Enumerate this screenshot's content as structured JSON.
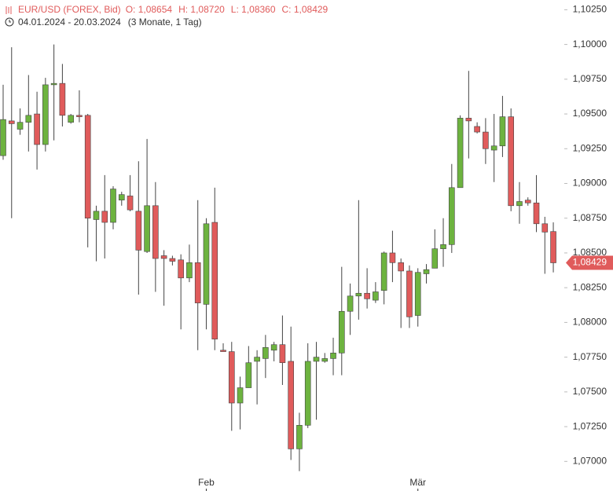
{
  "chart_data": {
    "type": "candlestick",
    "title": "EUR/USD (FOREX, Bid)",
    "ohlc_labels": [
      "O: 1,08654",
      "H: 1,08720",
      "L: 1,08360",
      "C: 1,08429"
    ],
    "date_range": "04.01.2024 - 20.03.2024",
    "period": "(3 Monate, 1 Tag)",
    "categories": [
      null,
      null,
      null,
      null,
      null,
      null,
      null,
      null,
      null,
      null,
      null,
      null,
      null,
      null,
      null,
      null,
      null,
      null,
      null,
      null,
      null,
      null,
      null,
      null,
      "Feb",
      null,
      null,
      null,
      null,
      null,
      null,
      null,
      null,
      null,
      null,
      null,
      null,
      null,
      null,
      null,
      null,
      null,
      null,
      null,
      null,
      null,
      null,
      null,
      null,
      "Mär",
      null,
      null,
      null,
      null,
      null,
      null,
      null,
      null,
      null,
      null,
      null,
      null,
      null,
      null,
      null,
      null
    ],
    "up_color": "#6db33f",
    "down_color": "#e05b5b",
    "open": [
      1.092,
      1.0945,
      1.0939,
      1.0944,
      1.095,
      1.0928,
      1.0971,
      1.0972,
      1.0944,
      1.0949,
      1.0949,
      1.0874,
      1.088,
      1.0872,
      1.0888,
      1.0891,
      1.088,
      1.0851,
      1.0884,
      1.0848,
      1.0846,
      1.0845,
      1.0832,
      1.0843,
      1.0813,
      1.0872,
      1.078,
      1.0779,
      1.0742,
      1.0753,
      1.0772,
      1.0774,
      1.078,
      1.0784,
      1.0772,
      1.0709,
      1.0726,
      1.0772,
      1.0772,
      1.0774,
      1.0778,
      1.0808,
      1.0819,
      1.0821,
      1.0816,
      1.0823,
      1.085,
      1.0843,
      1.0837,
      1.0805,
      1.0835,
      1.0839,
      1.0853,
      1.0856,
      1.0897,
      1.0947,
      1.0941,
      1.0937,
      1.0924,
      1.0927,
      1.0948,
      1.0884,
      1.0888,
      1.0886,
      1.0871,
      1.08654
    ],
    "high": [
      1.0971,
      1.0998,
      1.0954,
      1.0978,
      1.0966,
      1.0976,
      1.1,
      1.0986,
      1.095,
      1.0967,
      1.095,
      1.0884,
      1.0906,
      1.0898,
      1.0894,
      1.0906,
      1.0916,
      1.0932,
      1.0901,
      1.0852,
      1.0848,
      1.0849,
      1.0856,
      1.0888,
      1.0875,
      1.0897,
      1.0785,
      1.0786,
      1.0761,
      1.0783,
      1.078,
      1.0791,
      1.0786,
      1.0805,
      1.0797,
      1.0735,
      1.0785,
      1.0786,
      1.0778,
      1.0789,
      1.084,
      1.0828,
      1.0888,
      1.0839,
      1.0829,
      1.0851,
      1.0866,
      1.0846,
      1.0841,
      1.0839,
      1.0842,
      1.0867,
      1.0875,
      1.0914,
      1.0949,
      1.0981,
      1.0944,
      1.0947,
      1.095,
      1.0963,
      1.0954,
      1.0901,
      1.089,
      1.0906,
      1.0876,
      1.0872
    ],
    "low": [
      1.0917,
      1.0875,
      1.0935,
      1.0923,
      1.091,
      1.0923,
      1.0931,
      1.0941,
      1.0943,
      1.0944,
      1.0854,
      1.0844,
      1.0846,
      1.0867,
      1.0884,
      1.088,
      1.082,
      1.085,
      1.0822,
      1.0812,
      1.0841,
      1.0795,
      1.0829,
      1.078,
      1.0795,
      1.078,
      1.0779,
      1.0722,
      1.0723,
      1.0753,
      1.0741,
      1.076,
      1.0772,
      1.0755,
      1.0701,
      1.0693,
      1.0724,
      1.073,
      1.0771,
      1.0762,
      1.0762,
      1.0791,
      1.0802,
      1.081,
      1.0814,
      1.0813,
      1.0829,
      1.0796,
      1.0796,
      1.0797,
      1.0828,
      1.0839,
      1.084,
      1.085,
      1.0897,
      1.0918,
      1.0936,
      1.0914,
      1.0901,
      1.0919,
      1.088,
      1.0871,
      1.0884,
      1.0865,
      1.0835,
      1.0836
    ],
    "close": [
      1.0946,
      1.0943,
      1.0944,
      1.0949,
      1.0928,
      1.0971,
      1.0972,
      1.0949,
      1.0949,
      1.0948,
      1.0875,
      1.088,
      1.0872,
      1.0896,
      1.0892,
      1.0881,
      1.0852,
      1.0884,
      1.0846,
      1.0846,
      1.0844,
      1.0832,
      1.0843,
      1.0814,
      1.0871,
      1.0788,
      1.0779,
      1.0742,
      1.0753,
      1.0771,
      1.0775,
      1.0782,
      1.0784,
      1.0771,
      1.0709,
      1.0726,
      1.0772,
      1.0775,
      1.0774,
      1.0778,
      1.0808,
      1.0819,
      1.0821,
      1.0817,
      1.0822,
      1.085,
      1.0843,
      1.0837,
      1.0804,
      1.0836,
      1.0838,
      1.0853,
      1.0856,
      1.0897,
      1.0947,
      1.0945,
      1.0937,
      1.0925,
      1.0927,
      1.0948,
      1.0884,
      1.0887,
      1.0886,
      1.0871,
      1.0865,
      1.08429
    ],
    "last_price": {
      "value": 1.08429,
      "label": "1,08429"
    },
    "ylim": [
      1.069,
      1.1032
    ],
    "yticks": [
      {
        "value": 1.1025,
        "label": "1,10250"
      },
      {
        "value": 1.1,
        "label": "1,10000"
      },
      {
        "value": 1.0975,
        "label": "1,09750"
      },
      {
        "value": 1.095,
        "label": "1,09500"
      },
      {
        "value": 1.0925,
        "label": "1,09250"
      },
      {
        "value": 1.09,
        "label": "1,09000"
      },
      {
        "value": 1.0875,
        "label": "1,08750"
      },
      {
        "value": 1.085,
        "label": "1,08500"
      },
      {
        "value": 1.0825,
        "label": "1,08250"
      },
      {
        "value": 1.08,
        "label": "1,08000"
      },
      {
        "value": 1.0775,
        "label": "1,07750"
      },
      {
        "value": 1.075,
        "label": "1,07500"
      },
      {
        "value": 1.0725,
        "label": "1,07250"
      },
      {
        "value": 1.07,
        "label": "1,07000"
      }
    ],
    "grid": false
  }
}
